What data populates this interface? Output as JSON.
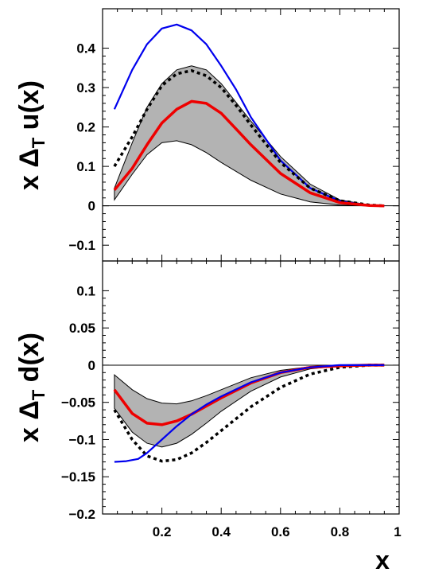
{
  "chart_data": [
    {
      "type": "line",
      "panel": "top",
      "ylabel_main": "x Δ",
      "ylabel_sub": "T",
      "ylabel_end": " u(x)",
      "xlim": [
        0,
        1
      ],
      "ylim": [
        -0.14,
        0.5
      ],
      "yticks": [
        -0.1,
        0,
        0.1,
        0.2,
        0.3,
        0.4
      ],
      "ytick_labels": [
        "−0.1",
        "0",
        "0.1",
        "0.2",
        "0.3",
        "0.4"
      ],
      "band": {
        "fill": "#b3b3b3",
        "x": [
          0.04,
          0.1,
          0.15,
          0.2,
          0.25,
          0.3,
          0.35,
          0.4,
          0.5,
          0.6,
          0.7,
          0.8,
          0.9,
          0.95
        ],
        "upper": [
          0.045,
          0.16,
          0.25,
          0.31,
          0.345,
          0.355,
          0.345,
          0.31,
          0.215,
          0.125,
          0.055,
          0.015,
          0.002,
          0.0
        ],
        "lower": [
          0.015,
          0.08,
          0.13,
          0.16,
          0.165,
          0.155,
          0.135,
          0.11,
          0.065,
          0.03,
          0.01,
          0.002,
          0.0,
          0.0
        ]
      },
      "series": [
        {
          "color": "#0000ee",
          "style": "solid",
          "x": [
            0.04,
            0.1,
            0.15,
            0.2,
            0.25,
            0.3,
            0.35,
            0.4,
            0.45,
            0.5,
            0.6,
            0.7,
            0.8,
            0.9,
            0.95
          ],
          "y": [
            0.245,
            0.345,
            0.41,
            0.45,
            0.46,
            0.445,
            0.41,
            0.355,
            0.295,
            0.225,
            0.115,
            0.045,
            0.012,
            0.001,
            0.0
          ]
        },
        {
          "color": "#000000",
          "style": "dotted",
          "x": [
            0.04,
            0.1,
            0.15,
            0.2,
            0.25,
            0.3,
            0.35,
            0.4,
            0.45,
            0.5,
            0.6,
            0.7,
            0.8,
            0.9,
            0.95
          ],
          "y": [
            0.1,
            0.175,
            0.245,
            0.305,
            0.335,
            0.343,
            0.33,
            0.3,
            0.255,
            0.205,
            0.11,
            0.045,
            0.013,
            0.002,
            0.0
          ]
        },
        {
          "color": "#ee0000",
          "style": "solid",
          "x": [
            0.04,
            0.1,
            0.15,
            0.2,
            0.25,
            0.3,
            0.35,
            0.4,
            0.45,
            0.5,
            0.6,
            0.7,
            0.8,
            0.9,
            0.95
          ],
          "y": [
            0.04,
            0.095,
            0.155,
            0.21,
            0.245,
            0.265,
            0.26,
            0.235,
            0.195,
            0.155,
            0.082,
            0.033,
            0.008,
            0.001,
            0.0
          ]
        }
      ]
    },
    {
      "type": "line",
      "panel": "bottom",
      "ylabel_main": "x Δ",
      "ylabel_sub": "T",
      "ylabel_end": " d(x)",
      "xlabel": "x",
      "xlim": [
        0,
        1
      ],
      "ylim": [
        -0.2,
        0.14
      ],
      "yticks": [
        -0.2,
        -0.15,
        -0.1,
        -0.05,
        0,
        0.05,
        0.1
      ],
      "ytick_labels": [
        "−0.2",
        "−0.15",
        "−0.1",
        "−0.05",
        "0",
        "0.05",
        "0.1"
      ],
      "xticks": [
        0.2,
        0.4,
        0.6,
        0.8,
        1.0
      ],
      "xtick_labels": [
        "0.2",
        "0.4",
        "0.6",
        "0.8",
        "1"
      ],
      "band": {
        "fill": "#b3b3b3",
        "x": [
          0.04,
          0.1,
          0.15,
          0.2,
          0.25,
          0.3,
          0.35,
          0.4,
          0.5,
          0.6,
          0.7,
          0.8,
          0.9,
          0.95
        ],
        "upper": [
          -0.013,
          -0.033,
          -0.045,
          -0.051,
          -0.052,
          -0.048,
          -0.041,
          -0.033,
          -0.017,
          -0.007,
          -0.002,
          0.0,
          0.0,
          0.0
        ],
        "lower": [
          -0.058,
          -0.09,
          -0.105,
          -0.11,
          -0.105,
          -0.093,
          -0.078,
          -0.062,
          -0.035,
          -0.016,
          -0.005,
          -0.001,
          0.0,
          0.0
        ]
      },
      "series": [
        {
          "color": "#000000",
          "style": "dotted",
          "x": [
            0.04,
            0.1,
            0.15,
            0.2,
            0.25,
            0.3,
            0.35,
            0.4,
            0.45,
            0.5,
            0.6,
            0.7,
            0.8,
            0.9,
            0.95
          ],
          "y": [
            -0.06,
            -0.1,
            -0.122,
            -0.129,
            -0.127,
            -0.118,
            -0.104,
            -0.088,
            -0.072,
            -0.056,
            -0.03,
            -0.012,
            -0.003,
            0.0,
            0.0
          ]
        },
        {
          "color": "#ee0000",
          "style": "solid",
          "x": [
            0.04,
            0.1,
            0.15,
            0.2,
            0.25,
            0.3,
            0.35,
            0.4,
            0.5,
            0.6,
            0.7,
            0.8,
            0.9,
            0.95
          ],
          "y": [
            -0.033,
            -0.065,
            -0.078,
            -0.08,
            -0.075,
            -0.066,
            -0.055,
            -0.044,
            -0.024,
            -0.01,
            -0.003,
            -0.001,
            0.0,
            0.0
          ]
        },
        {
          "color": "#0000ee",
          "style": "solid",
          "x": [
            0.04,
            0.08,
            0.12,
            0.15,
            0.2,
            0.25,
            0.3,
            0.35,
            0.4,
            0.5,
            0.6,
            0.7,
            0.8,
            0.9,
            0.95
          ],
          "y": [
            -0.13,
            -0.129,
            -0.126,
            -0.118,
            -0.1,
            -0.082,
            -0.066,
            -0.053,
            -0.042,
            -0.023,
            -0.01,
            -0.003,
            0.0,
            0.0,
            0.0
          ]
        }
      ]
    }
  ]
}
